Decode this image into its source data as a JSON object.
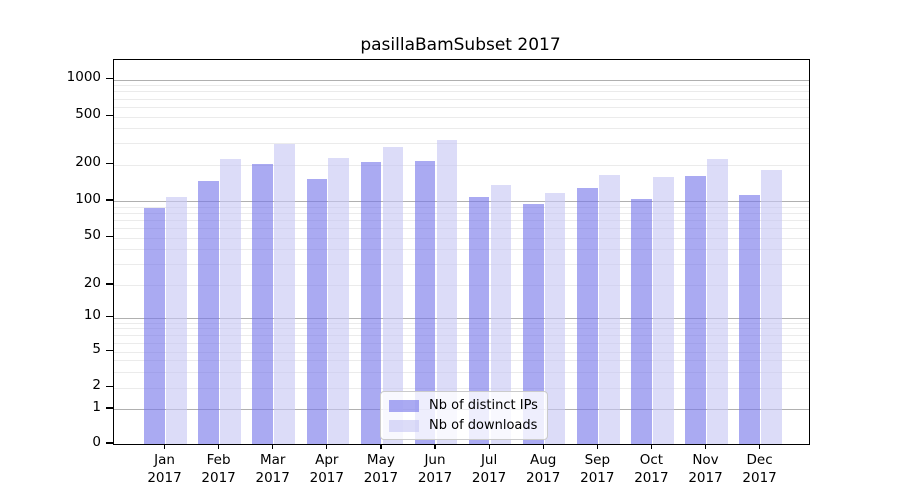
{
  "chart_data": {
    "type": "bar",
    "title": "pasillaBamSubset 2017",
    "categories": [
      "Jan",
      "Feb",
      "Mar",
      "Apr",
      "May",
      "Jun",
      "Jul",
      "Aug",
      "Sep",
      "Oct",
      "Nov",
      "Dec"
    ],
    "year": "2017",
    "series": [
      {
        "name": "Nb of distinct IPs",
        "color": "rgba(118,118,234,0.62)",
        "values": [
          88,
          145,
          203,
          153,
          210,
          213,
          108,
          95,
          127,
          103,
          160,
          112
        ]
      },
      {
        "name": "Nb of downloads",
        "color": "rgba(198,198,244,0.62)",
        "values": [
          108,
          222,
          294,
          228,
          282,
          318,
          135,
          117,
          164,
          158,
          221,
          179
        ]
      }
    ],
    "y_axis": {
      "scale": "log-like",
      "tick_labels": [
        1000,
        500,
        200,
        100,
        50,
        20,
        10,
        5,
        2,
        1,
        0
      ],
      "range_min": 0,
      "range_max": 1450
    },
    "x_axis": {
      "tick_label_lines": 2
    },
    "legend": {
      "position": "lower-center"
    },
    "grid": true,
    "background_color": "#ffffff",
    "gridline_major_color": "#b0b0b0",
    "gridline_minor_color": "#ebebeb"
  }
}
